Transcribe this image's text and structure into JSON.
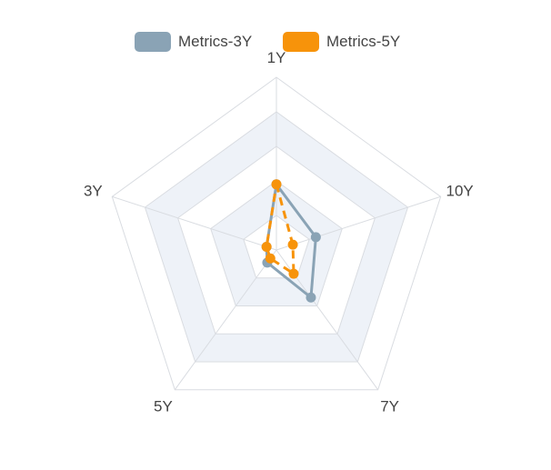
{
  "chart_data": {
    "type": "radar",
    "axes": [
      "1Y",
      "10Y",
      "7Y",
      "5Y",
      "3Y"
    ],
    "max": 5,
    "rings": 5,
    "legend_position": "top-center",
    "series": [
      {
        "name": "Metrics-3Y",
        "values": [
          1.9,
          1.2,
          1.7,
          0.45,
          0.3
        ],
        "color": "#8aa3b5",
        "line_style": "solid"
      },
      {
        "name": "Metrics-5Y",
        "values": [
          1.9,
          0.5,
          0.85,
          0.3,
          0.3
        ],
        "color": "#f7930a",
        "line_style": "dashed"
      }
    ],
    "grid_color": "#d9dce1",
    "band_color": "#eef2f8"
  }
}
